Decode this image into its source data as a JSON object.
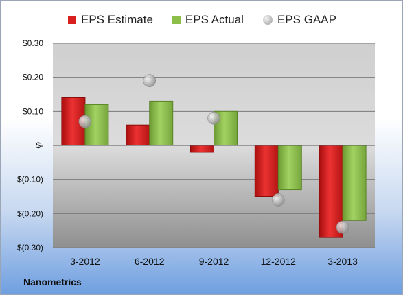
{
  "company": "Nanometrics",
  "colors": {
    "estimate": "#d82020",
    "actual": "#8cbe48",
    "gaap": "#b8b8b8"
  },
  "legend": [
    {
      "name": "EPS Estimate",
      "key": "estimate"
    },
    {
      "name": "EPS Actual",
      "key": "actual"
    },
    {
      "name": "EPS GAAP",
      "key": "gaap"
    }
  ],
  "chart_data": {
    "type": "bar",
    "categories": [
      "3-2012",
      "6-2012",
      "9-2012",
      "12-2012",
      "3-2013"
    ],
    "series": [
      {
        "name": "EPS Estimate",
        "values": [
          0.14,
          0.06,
          -0.02,
          -0.15,
          -0.27
        ]
      },
      {
        "name": "EPS Actual",
        "values": [
          0.12,
          0.13,
          0.1,
          -0.13,
          -0.22
        ]
      },
      {
        "name": "EPS GAAP",
        "values": [
          0.07,
          0.19,
          0.08,
          -0.16,
          -0.24
        ],
        "marker": "circle"
      }
    ],
    "ylim": [
      -0.3,
      0.3
    ],
    "yticks": [
      {
        "value": 0.3,
        "label": "$0.30"
      },
      {
        "value": 0.2,
        "label": "$0.20"
      },
      {
        "value": 0.1,
        "label": "$0.10"
      },
      {
        "value": 0.0,
        "label": "$-"
      },
      {
        "value": -0.1,
        "label": "$(0.10)"
      },
      {
        "value": -0.2,
        "label": "$(0.20)"
      },
      {
        "value": -0.3,
        "label": "$(0.30)"
      }
    ],
    "grid": true,
    "legend_position": "top"
  }
}
